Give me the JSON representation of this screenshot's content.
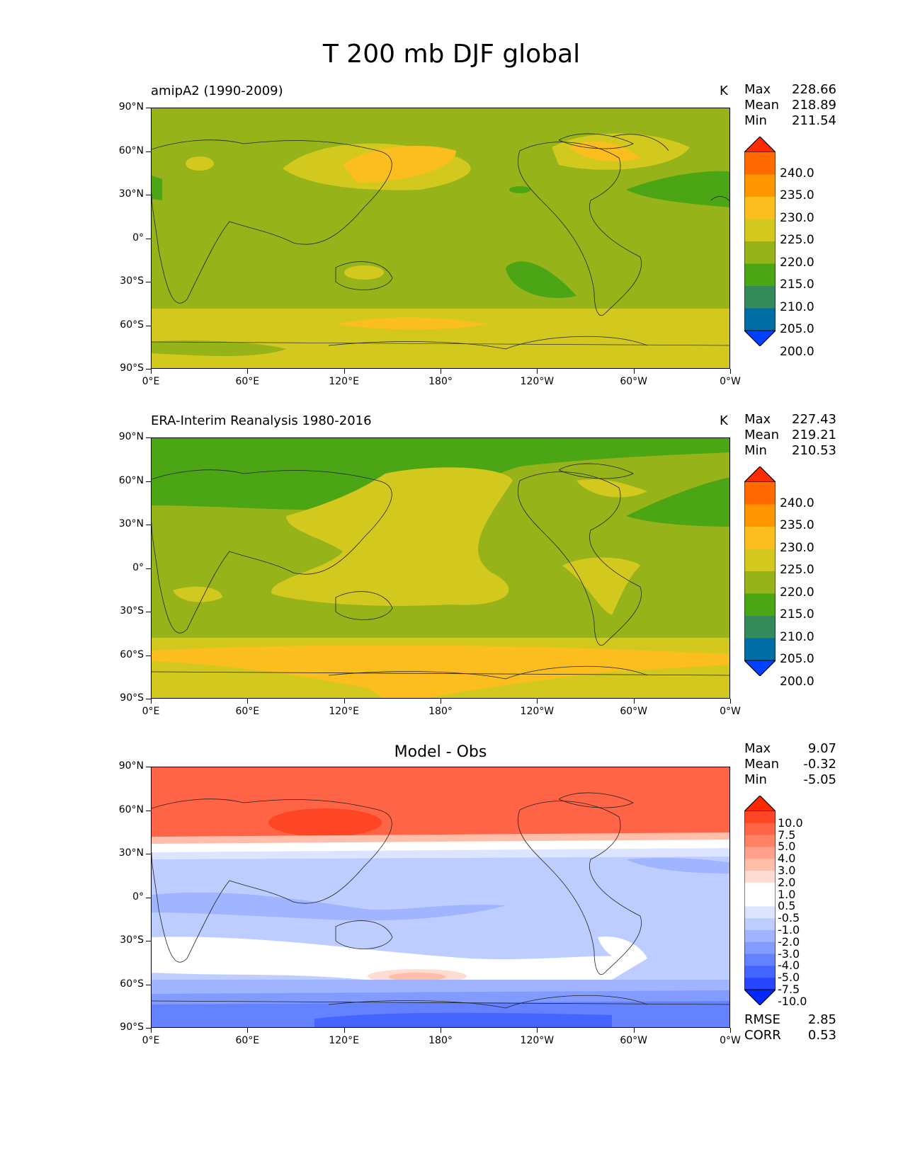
{
  "title": "T 200 mb DJF global",
  "x_ticks": [
    "0°E",
    "60°E",
    "120°E",
    "180°",
    "120°W",
    "60°W",
    "0°W"
  ],
  "y_ticks": [
    "90°N",
    "60°N",
    "30°N",
    "0°",
    "30°S",
    "60°S",
    "90°S"
  ],
  "panels": [
    {
      "title": "amipA2 (1990-2009)",
      "units": "K",
      "stats": {
        "max_label": "Max",
        "max": "228.66",
        "mean_label": "Mean",
        "mean": "218.89",
        "min_label": "Min",
        "min": "211.54"
      },
      "colorbar_labels": [
        "240.0",
        "235.0",
        "230.0",
        "225.0",
        "220.0",
        "215.0",
        "210.0",
        "205.0",
        "200.0"
      ]
    },
    {
      "title": "ERA-Interim Reanalysis 1980-2016",
      "units": "K",
      "stats": {
        "max_label": "Max",
        "max": "227.43",
        "mean_label": "Mean",
        "mean": "219.21",
        "min_label": "Min",
        "min": "210.53"
      },
      "colorbar_labels": [
        "240.0",
        "235.0",
        "230.0",
        "225.0",
        "220.0",
        "215.0",
        "210.0",
        "205.0",
        "200.0"
      ]
    },
    {
      "title": "Model - Obs",
      "stats": {
        "max_label": "Max",
        "max": "9.07",
        "mean_label": "Mean",
        "mean": "-0.32",
        "min_label": "Min",
        "min": "-5.05"
      },
      "colorbar_labels": [
        "10.0",
        "7.5",
        "5.0",
        "4.0",
        "3.0",
        "2.0",
        "1.0",
        "0.5",
        "-0.5",
        "-1.0",
        "-2.0",
        "-3.0",
        "-4.0",
        "-5.0",
        "-7.5",
        "-10.0"
      ],
      "rmse_label": "RMSE",
      "rmse": "2.85",
      "corr_label": "CORR",
      "corr": "0.53"
    }
  ],
  "colors": {
    "temp_scale": [
      "#ff2a00",
      "#ff6a00",
      "#ff9600",
      "#fbbe1e",
      "#d2c81e",
      "#96b41a",
      "#4ba514",
      "#348a5a",
      "#006ea5",
      "#0040ff"
    ],
    "diff_scale": [
      "#ff2800",
      "#ff4624",
      "#ff6446",
      "#ff8264",
      "#ffa08c",
      "#ffbeaa",
      "#ffdcd2",
      "#ffffff",
      "#ffffff",
      "#dce4ff",
      "#becdff",
      "#a0b4ff",
      "#829bff",
      "#6482ff",
      "#4664ff",
      "#2846ff",
      "#0028ff"
    ]
  }
}
